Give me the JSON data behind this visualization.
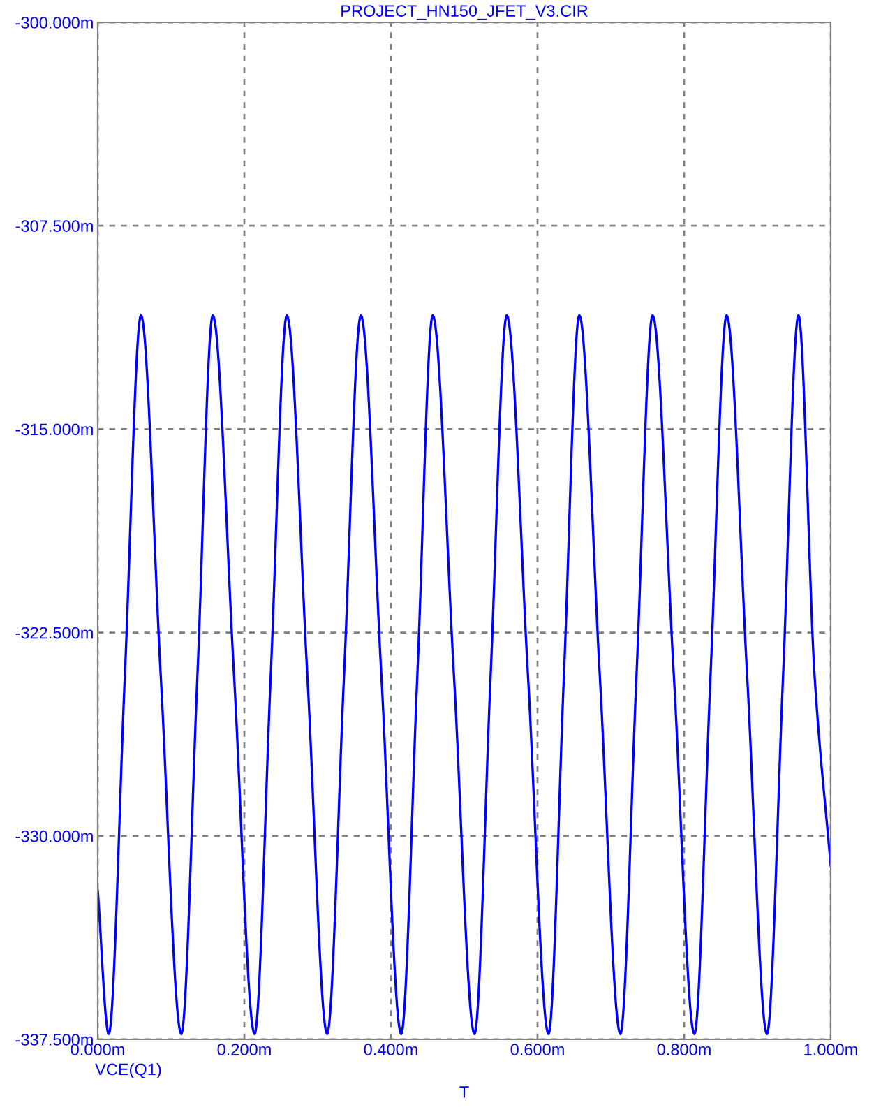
{
  "chart_data": {
    "type": "line",
    "title": "PROJECT_HN150_JFET_V3.CIR",
    "xlabel": "T",
    "series": [
      {
        "name": "VCE(Q1)",
        "color": "#0000ff",
        "x": [
          0,
          0.015,
          0.037,
          0.059,
          0.086,
          0.114,
          0.136,
          0.157,
          0.186,
          0.214,
          0.236,
          0.258,
          0.286,
          0.313,
          0.336,
          0.359,
          0.387,
          0.414,
          0.436,
          0.457,
          0.486,
          0.514,
          0.536,
          0.558,
          0.587,
          0.615,
          0.636,
          0.657,
          0.685,
          0.713,
          0.735,
          0.757,
          0.786,
          0.814,
          0.836,
          0.858,
          0.886,
          0.913,
          0.935,
          0.956,
          0.978,
          1.0
        ],
        "values": [
          -332.0,
          -337.3,
          -324.1,
          -310.8,
          -324.1,
          -337.3,
          -324.1,
          -310.8,
          -324.1,
          -337.3,
          -324.1,
          -310.8,
          -324.1,
          -337.3,
          -324.1,
          -310.8,
          -324.1,
          -337.3,
          -324.1,
          -310.8,
          -324.1,
          -337.3,
          -324.1,
          -310.8,
          -324.1,
          -337.3,
          -324.1,
          -310.8,
          -324.1,
          -337.3,
          -324.1,
          -310.8,
          -324.1,
          -337.3,
          -324.1,
          -310.8,
          -324.1,
          -337.3,
          -324.1,
          -310.8,
          -324.1,
          -331.1
        ]
      }
    ],
    "xlim": [
      0,
      1.0
    ],
    "xticks": [
      {
        "value": 0,
        "label": "0.000m"
      },
      {
        "value": 0.2,
        "label": "0.200m"
      },
      {
        "value": 0.4,
        "label": "0.400m"
      },
      {
        "value": 0.6,
        "label": "0.600m"
      },
      {
        "value": 0.8,
        "label": "0.800m"
      },
      {
        "value": 1.0,
        "label": "1.000m"
      }
    ],
    "ylim": [
      -337.5,
      -300
    ],
    "yticks": [
      {
        "value": -337.5,
        "label": "-337.500m"
      },
      {
        "value": -330,
        "label": "-330.000m"
      },
      {
        "value": -322.5,
        "label": "-322.500m"
      },
      {
        "value": -315,
        "label": "-315.000m"
      },
      {
        "value": -307.5,
        "label": "-307.500m"
      },
      {
        "value": -300,
        "label": "-300.000m"
      }
    ],
    "grid": true,
    "legend": "bottom left",
    "marker": "none",
    "line_style": "solid"
  }
}
